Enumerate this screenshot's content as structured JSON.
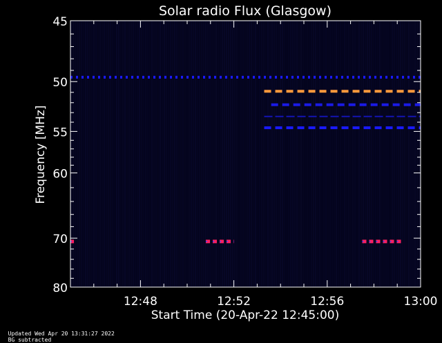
{
  "chart_data": {
    "type": "heatmap",
    "title": "Solar radio Flux (Glasgow)",
    "xlabel": "Start Time (20-Apr-22 12:45:00)",
    "ylabel": "Frequency [MHz]",
    "xlim_minutes": [
      0,
      15
    ],
    "ylim": [
      45,
      80
    ],
    "y_scale": "reciprocal",
    "x_ticks": [
      {
        "minutes": 3,
        "label": "12:48"
      },
      {
        "minutes": 7,
        "label": "12:52"
      },
      {
        "minutes": 11,
        "label": "12:56"
      },
      {
        "minutes": 15,
        "label": "13:00"
      }
    ],
    "y_ticks": [
      {
        "value": 45,
        "label": "45"
      },
      {
        "value": 50,
        "label": "50"
      },
      {
        "value": 55,
        "label": "55"
      },
      {
        "value": 60,
        "label": "60"
      },
      {
        "value": 70,
        "label": "70"
      },
      {
        "value": 80,
        "label": "80"
      }
    ],
    "y_minor_ticks": [
      46,
      47,
      48,
      49,
      51,
      52,
      53,
      54,
      56,
      57,
      58,
      59,
      62,
      64,
      66,
      68,
      72,
      74,
      76,
      78
    ],
    "features": [
      {
        "freq": 49.6,
        "t_start": 0.0,
        "t_end": 15.0,
        "color": "#1a1aff",
        "style": "dotted"
      },
      {
        "freq": 50.9,
        "t_start": 8.3,
        "t_end": 15.0,
        "color": "#ff9a3c",
        "style": "dashed"
      },
      {
        "freq": 52.2,
        "t_start": 8.6,
        "t_end": 15.0,
        "color": "#1a1ae6",
        "style": "dashed"
      },
      {
        "freq": 53.4,
        "t_start": 8.3,
        "t_end": 15.0,
        "color": "#1414b4",
        "style": "thin-dashed"
      },
      {
        "freq": 54.6,
        "t_start": 8.3,
        "t_end": 15.0,
        "color": "#1a1aff",
        "style": "dashed"
      },
      {
        "freq": 70.6,
        "t_start": 0.0,
        "t_end": 0.15,
        "color": "#ff2060",
        "style": "burst"
      },
      {
        "freq": 70.6,
        "t_start": 5.8,
        "t_end": 7.0,
        "color": "#ff2060",
        "style": "burst"
      },
      {
        "freq": 70.6,
        "t_start": 12.5,
        "t_end": 14.2,
        "color": "#ff2060",
        "style": "burst"
      }
    ],
    "background_color": "#04041c",
    "colors": {
      "background": "#000000",
      "axes": "#ffffff",
      "plot_bg": "#04041c"
    }
  },
  "footer": {
    "updated": "Updated Wed Apr 20 13:31:27 2022",
    "note": "BG subtracted"
  }
}
